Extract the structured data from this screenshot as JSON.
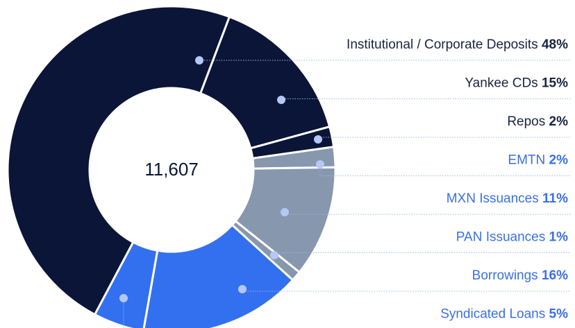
{
  "chart_data": {
    "type": "donut",
    "center_label": "11,607",
    "categories": [
      "Institutional / Corporate Deposits",
      "Yankee CDs",
      "Repos",
      "EMTN",
      "MXN Issuances",
      "PAN Issuances",
      "Borrowings",
      "Syndicated Loans"
    ],
    "values": [
      48,
      15,
      2,
      2,
      11,
      1,
      16,
      5
    ],
    "value_labels": [
      "48%",
      "15%",
      "2%",
      "2%",
      "11%",
      "1%",
      "16%",
      "5%"
    ],
    "colors": [
      "#0b1538",
      "#0b1538",
      "#0b1538",
      "#8797ae",
      "#8797ae",
      "#8797ae",
      "#3370f0",
      "#3370f0"
    ]
  }
}
